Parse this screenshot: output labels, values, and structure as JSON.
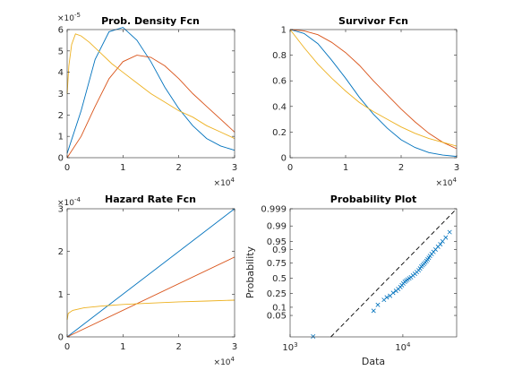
{
  "chart_data": [
    {
      "type": "line",
      "title": "Prob. Density Fcn",
      "xlim": [
        0,
        3
      ],
      "ylim": [
        0,
        6
      ],
      "x_ticks": [
        "0",
        "1",
        "2",
        "3"
      ],
      "y_ticks": [
        "0",
        "1",
        "2",
        "3",
        "4",
        "5",
        "6"
      ],
      "x_multiplier": "×10",
      "x_exponent": "4",
      "y_multiplier": "×10",
      "y_exponent": "-5",
      "grid": false,
      "series": [
        {
          "color": "#0072bd",
          "x": [
            0,
            0.25,
            0.5,
            0.75,
            1.0,
            1.25,
            1.5,
            1.75,
            2.0,
            2.25,
            2.5,
            2.75,
            3.0
          ],
          "values": [
            0.2,
            2.2,
            4.6,
            5.9,
            6.1,
            5.5,
            4.5,
            3.3,
            2.3,
            1.5,
            0.9,
            0.55,
            0.35
          ]
        },
        {
          "color": "#d95319",
          "x": [
            0,
            0.25,
            0.5,
            0.75,
            1.0,
            1.25,
            1.5,
            1.75,
            2.0,
            2.25,
            2.5,
            2.75,
            3.0
          ],
          "values": [
            0.0,
            1.0,
            2.4,
            3.7,
            4.5,
            4.8,
            4.7,
            4.3,
            3.7,
            3.0,
            2.4,
            1.8,
            1.2
          ]
        },
        {
          "color": "#edb120",
          "x": [
            0,
            0.03,
            0.08,
            0.15,
            0.25,
            0.4,
            0.6,
            0.8,
            1.0,
            1.25,
            1.5,
            1.75,
            2.0,
            2.25,
            2.5,
            2.75,
            3.0
          ],
          "values": [
            3.0,
            4.3,
            5.3,
            5.8,
            5.7,
            5.4,
            4.9,
            4.4,
            4.0,
            3.5,
            3.0,
            2.6,
            2.2,
            1.9,
            1.5,
            1.2,
            0.9
          ]
        }
      ]
    },
    {
      "type": "line",
      "title": "Survivor Fcn",
      "xlim": [
        0,
        3
      ],
      "ylim": [
        0,
        1
      ],
      "x_ticks": [
        "0",
        "1",
        "2",
        "3"
      ],
      "y_ticks": [
        "0",
        "0.2",
        "0.4",
        "0.6",
        "0.8",
        "1"
      ],
      "x_multiplier": "×10",
      "x_exponent": "4",
      "grid": false,
      "series": [
        {
          "color": "#0072bd",
          "x": [
            0,
            0.25,
            0.5,
            0.75,
            1.0,
            1.25,
            1.5,
            1.75,
            2.0,
            2.25,
            2.5,
            2.75,
            3.0
          ],
          "values": [
            1.0,
            0.97,
            0.89,
            0.76,
            0.62,
            0.47,
            0.34,
            0.23,
            0.14,
            0.08,
            0.04,
            0.02,
            0.01
          ]
        },
        {
          "color": "#d95319",
          "x": [
            0,
            0.25,
            0.5,
            0.75,
            1.0,
            1.25,
            1.5,
            1.75,
            2.0,
            2.25,
            2.5,
            2.75,
            3.0
          ],
          "values": [
            1.0,
            0.99,
            0.96,
            0.9,
            0.82,
            0.72,
            0.6,
            0.49,
            0.38,
            0.28,
            0.19,
            0.12,
            0.07
          ]
        },
        {
          "color": "#edb120",
          "x": [
            0,
            0.25,
            0.5,
            0.75,
            1.0,
            1.25,
            1.5,
            1.75,
            2.0,
            2.25,
            2.5,
            2.75,
            3.0
          ],
          "values": [
            1.0,
            0.86,
            0.73,
            0.62,
            0.52,
            0.43,
            0.36,
            0.3,
            0.24,
            0.19,
            0.15,
            0.12,
            0.09
          ]
        }
      ]
    },
    {
      "type": "line",
      "title": "Hazard Rate Fcn",
      "xlim": [
        0,
        3
      ],
      "ylim": [
        0,
        3
      ],
      "x_ticks": [
        "0",
        "1",
        "2",
        "3"
      ],
      "y_ticks": [
        "0",
        "1",
        "2",
        "3"
      ],
      "x_multiplier": "×10",
      "x_exponent": "4",
      "y_multiplier": "×10",
      "y_exponent": "-4",
      "grid": false,
      "series": [
        {
          "color": "#0072bd",
          "x": [
            0,
            3
          ],
          "values": [
            0,
            3.0
          ]
        },
        {
          "color": "#d95319",
          "x": [
            0,
            3
          ],
          "values": [
            0,
            1.87
          ]
        },
        {
          "color": "#edb120",
          "x": [
            0,
            0.02,
            0.1,
            0.3,
            0.6,
            1.0,
            1.5,
            2.0,
            2.5,
            3.0
          ],
          "values": [
            0.4,
            0.55,
            0.62,
            0.68,
            0.72,
            0.76,
            0.79,
            0.82,
            0.84,
            0.86
          ]
        }
      ]
    },
    {
      "type": "scatter",
      "title": "Probability Plot",
      "xlabel": "Data",
      "ylabel": "Probability",
      "x_scale": "log",
      "xlim": [
        1000,
        30000
      ],
      "x_ticks": [
        {
          "base": "10",
          "exp": "3",
          "value": 1000
        },
        {
          "base": "10",
          "exp": "4",
          "value": 10000
        }
      ],
      "y_ticks": [
        "0.05",
        "0.1",
        "0.25",
        "0.5",
        "0.75",
        "0.9",
        "0.95",
        "0.99",
        "0.999"
      ],
      "grid": false,
      "fit_line": {
        "style": "dashed",
        "color": "#000000",
        "x": [
          2300,
          30000
        ],
        "y": [
          0.002,
          0.9995
        ]
      },
      "series": [
        {
          "color": "#0072bd",
          "marker": "x",
          "x": [
            1600,
            5500,
            6000,
            6800,
            7200,
            7700,
            8200,
            8700,
            9100,
            9500,
            9800,
            10100,
            10400,
            10700,
            11000,
            11400,
            11800,
            12300,
            12800,
            13300,
            13800,
            14200,
            14600,
            15000,
            15400,
            15800,
            16200,
            16600,
            17000,
            17400,
            18000,
            18700,
            19500,
            20500,
            21500,
            22500,
            24000,
            26000
          ],
          "y": [
            0.005,
            0.075,
            0.12,
            0.17,
            0.2,
            0.22,
            0.26,
            0.29,
            0.32,
            0.35,
            0.38,
            0.41,
            0.44,
            0.46,
            0.48,
            0.5,
            0.52,
            0.55,
            0.58,
            0.61,
            0.64,
            0.67,
            0.7,
            0.72,
            0.74,
            0.76,
            0.78,
            0.8,
            0.82,
            0.84,
            0.86,
            0.88,
            0.9,
            0.92,
            0.935,
            0.95,
            0.965,
            0.98
          ]
        }
      ]
    }
  ]
}
